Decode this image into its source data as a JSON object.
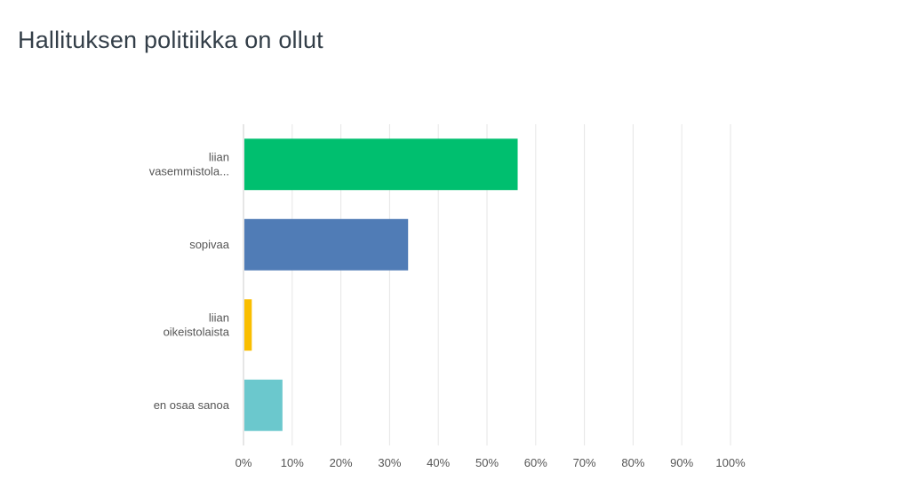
{
  "chart_data": {
    "type": "bar",
    "orientation": "horizontal",
    "title": "Hallituksen politiikka on ollut",
    "categories": [
      [
        "liian",
        "vasemmistola..."
      ],
      [
        "sopivaa"
      ],
      [
        "liian",
        "oikeistolaista"
      ],
      [
        "en osaa sanoa"
      ]
    ],
    "values": [
      56.3,
      33.8,
      1.7,
      8.0
    ],
    "colors": [
      "#00bf6f",
      "#507cb6",
      "#f9be00",
      "#6bc8cd"
    ],
    "xlim": [
      0,
      100
    ],
    "xticks": [
      "0%",
      "10%",
      "20%",
      "30%",
      "40%",
      "50%",
      "60%",
      "70%",
      "80%",
      "90%",
      "100%"
    ],
    "grid": true
  }
}
